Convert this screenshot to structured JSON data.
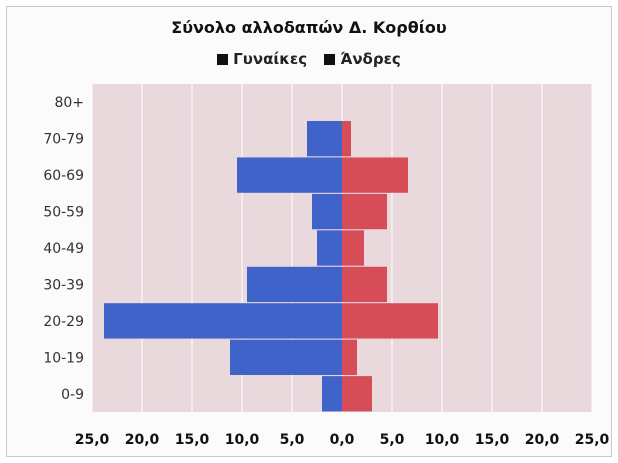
{
  "chart_data": {
    "type": "bar",
    "orientation": "horizontal",
    "title": "Σύνολο αλλοδαπών Δ. Κορθίου",
    "legend_position": "top",
    "categories": [
      "80+",
      "70-79",
      "60-69",
      "50-59",
      "40-49",
      "30-39",
      "20-29",
      "10-19",
      "0-9"
    ],
    "series": [
      {
        "name": "Γυναίκες",
        "side": "left",
        "color": "#3f63c9",
        "values": [
          0,
          3.5,
          10.5,
          3.0,
          2.5,
          9.5,
          23.8,
          11.2,
          2.0
        ]
      },
      {
        "name": "Άνδρες",
        "side": "right",
        "color": "#d64d57",
        "values": [
          0,
          0.9,
          6.6,
          4.5,
          2.2,
          4.5,
          9.6,
          1.5,
          3.0
        ]
      }
    ],
    "x_tick_labels": [
      "25,0",
      "20,0",
      "15,0",
      "10,0",
      "5,0",
      "0,0",
      "5,0",
      "10,0",
      "15,0",
      "20,0",
      "25,0"
    ],
    "xlim": [
      -25,
      25
    ],
    "grid": true
  },
  "colors": {
    "plot_background": "#ead9dc",
    "gridline": "#ffffff",
    "frame": "#c9c9c9"
  }
}
